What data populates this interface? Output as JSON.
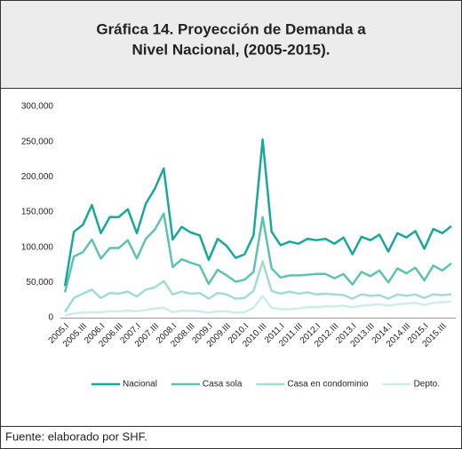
{
  "chart_data": {
    "type": "line",
    "title": [
      "Gráfica 14. Proyección de Demanda a",
      "Nivel Nacional, (2005-2015)."
    ],
    "source": "Fuente: elaborado por SHF.",
    "categories": [
      "2005.I",
      null,
      "2005.III",
      null,
      "2006.I",
      null,
      "2006.III",
      null,
      "2007.I",
      null,
      "2007.III",
      null,
      "2008.I",
      null,
      "2008.III",
      null,
      "2009.I",
      null,
      "2009.III",
      null,
      "2010.I",
      null,
      "2010.III",
      null,
      "2011.I",
      null,
      "2011.III",
      null,
      "2012.I",
      null,
      "2012.III",
      null,
      "2013.I",
      null,
      "2013.III",
      null,
      "2014.I",
      null,
      "2014.III",
      null,
      "2015.I",
      null,
      "2015.III",
      null
    ],
    "ylim": [
      0,
      300000
    ],
    "yticks": [
      0,
      {
        "value": 50000,
        "label": "50,000"
      },
      {
        "value": 100000,
        "label": "100,000"
      },
      {
        "value": 150000,
        "label": "150,000"
      },
      {
        "value": 200000,
        "label": "200,000"
      },
      {
        "value": 250000,
        "label": "250,000"
      },
      {
        "value": 300000,
        "label": "300,000"
      }
    ],
    "grid": false,
    "legend": "bottom",
    "series": [
      {
        "name": "Nacional",
        "color": "#17a898",
        "values": [
          45000,
          122000,
          132000,
          160000,
          120000,
          143000,
          143000,
          154000,
          120000,
          162000,
          183000,
          212000,
          111000,
          129000,
          121000,
          117000,
          82000,
          112000,
          102000,
          85000,
          90000,
          117000,
          253000,
          122000,
          103000,
          108000,
          105000,
          112000,
          110000,
          112000,
          105000,
          114000,
          90000,
          115000,
          110000,
          118000,
          94000,
          120000,
          114000,
          123000,
          98000,
          126000,
          120000,
          130000
        ]
      },
      {
        "name": "Casa sola",
        "color": "#5cc3b3",
        "values": [
          36000,
          87000,
          93000,
          111000,
          84000,
          99000,
          99000,
          110000,
          84000,
          112000,
          125000,
          148000,
          72000,
          83000,
          78000,
          74000,
          48000,
          68000,
          60000,
          51000,
          54000,
          65000,
          143000,
          70000,
          57000,
          60000,
          60000,
          61000,
          62000,
          62000,
          56000,
          62000,
          47000,
          65000,
          59000,
          67000,
          50000,
          70000,
          63000,
          71000,
          53000,
          74000,
          67000,
          77000
        ]
      },
      {
        "name": "Casa en condominio",
        "color": "#a2dcd2",
        "values": [
          8000,
          28000,
          34000,
          40000,
          28000,
          35000,
          34000,
          37000,
          30000,
          40000,
          43000,
          52000,
          33000,
          37000,
          34000,
          35000,
          27000,
          35000,
          33000,
          27000,
          28000,
          38000,
          80000,
          38000,
          34000,
          37000,
          34000,
          36000,
          33000,
          34000,
          33000,
          32000,
          27000,
          33000,
          31000,
          32000,
          27000,
          33000,
          31000,
          33000,
          28000,
          33000,
          32000,
          33000
        ]
      },
      {
        "name": "Depto.",
        "color": "#cdeee8",
        "values": [
          3000,
          6000,
          7000,
          8000,
          8000,
          9000,
          9000,
          10000,
          9000,
          11000,
          13000,
          14000,
          8000,
          10000,
          10000,
          9000,
          7000,
          9000,
          9000,
          7000,
          8000,
          14000,
          31000,
          14000,
          12000,
          12000,
          13000,
          15000,
          15000,
          16000,
          16000,
          17000,
          15000,
          17000,
          18000,
          19000,
          17000,
          19000,
          20000,
          21000,
          18000,
          21000,
          22000,
          23000
        ]
      }
    ]
  }
}
